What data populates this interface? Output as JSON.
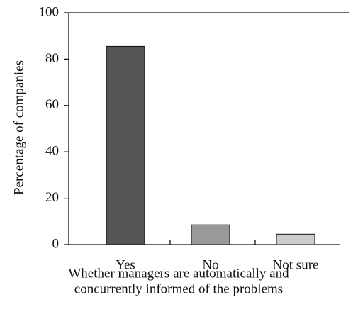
{
  "chart_data": {
    "type": "bar",
    "categories": [
      "Yes",
      "No",
      "Not sure"
    ],
    "values": [
      85.5,
      8.5,
      4.5
    ],
    "colors": [
      "#555555",
      "#999999",
      "#cccccc"
    ],
    "ylabel": "Percentage of companies",
    "xlabel": [
      "Whether managers are automatically and",
      "concurrently informed of the problems"
    ],
    "ylim": [
      0,
      100
    ],
    "yticks": [
      0,
      20,
      40,
      60,
      80,
      100
    ],
    "grid": false
  }
}
